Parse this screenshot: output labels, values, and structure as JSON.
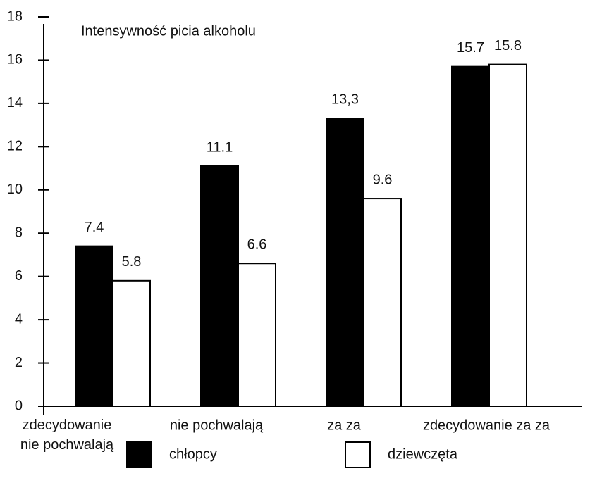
{
  "chart_data": {
    "type": "bar",
    "title": "Intensywność picia alkoholu",
    "categories": [
      "zdecydowanie\nnie pochwalają",
      "nie pochwalają",
      "za za",
      "zdecydowanie za za"
    ],
    "series": [
      {
        "name": "chłopcy",
        "color": "#000000",
        "values": [
          7.4,
          11.1,
          13.3,
          15.7
        ],
        "value_labels": [
          "7.4",
          "11.1",
          "13,3",
          "15.7"
        ]
      },
      {
        "name": "dziewczęta",
        "color": "#ffffff",
        "values": [
          5.8,
          6.6,
          9.6,
          15.8
        ]
      }
    ],
    "ylim": [
      0,
      18
    ],
    "yticks": [
      0,
      2,
      4,
      6,
      8,
      10,
      12,
      14,
      16,
      18
    ]
  }
}
